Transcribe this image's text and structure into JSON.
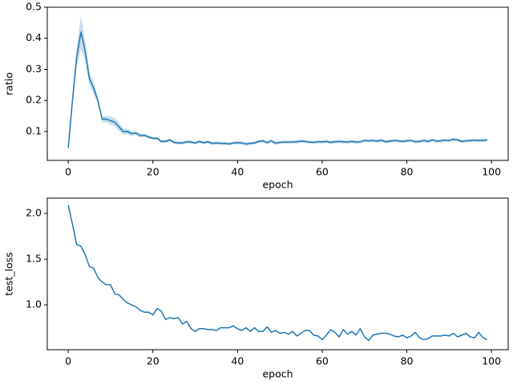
{
  "chart_data": [
    {
      "type": "line",
      "x_label": "epoch",
      "y_label": "ratio",
      "x": [
        0,
        1,
        2,
        3,
        4,
        5,
        6,
        7,
        8,
        9,
        10,
        11,
        12,
        13,
        14,
        15,
        16,
        17,
        18,
        19,
        20,
        21,
        22,
        23,
        24,
        25,
        26,
        27,
        28,
        29,
        30,
        31,
        32,
        33,
        34,
        35,
        36,
        37,
        38,
        39,
        40,
        41,
        42,
        43,
        44,
        45,
        46,
        47,
        48,
        49,
        50,
        51,
        52,
        53,
        54,
        55,
        56,
        57,
        58,
        59,
        60,
        61,
        62,
        63,
        64,
        65,
        66,
        67,
        68,
        69,
        70,
        71,
        72,
        73,
        74,
        75,
        76,
        77,
        78,
        79,
        80,
        81,
        82,
        83,
        84,
        85,
        86,
        87,
        88,
        89,
        90,
        91,
        92,
        93,
        94,
        95,
        96,
        97,
        98,
        99
      ],
      "values": [
        0.047,
        0.2,
        0.34,
        0.42,
        0.36,
        0.27,
        0.24,
        0.2,
        0.14,
        0.14,
        0.135,
        0.13,
        0.115,
        0.1,
        0.1,
        0.093,
        0.095,
        0.087,
        0.088,
        0.082,
        0.078,
        0.078,
        0.068,
        0.068,
        0.073,
        0.065,
        0.063,
        0.063,
        0.067,
        0.066,
        0.063,
        0.068,
        0.064,
        0.067,
        0.062,
        0.063,
        0.062,
        0.062,
        0.06,
        0.063,
        0.064,
        0.063,
        0.06,
        0.062,
        0.063,
        0.068,
        0.07,
        0.064,
        0.07,
        0.062,
        0.065,
        0.066,
        0.066,
        0.066,
        0.067,
        0.069,
        0.068,
        0.066,
        0.065,
        0.067,
        0.067,
        0.068,
        0.065,
        0.067,
        0.068,
        0.067,
        0.066,
        0.068,
        0.066,
        0.067,
        0.071,
        0.07,
        0.071,
        0.069,
        0.072,
        0.067,
        0.069,
        0.071,
        0.07,
        0.068,
        0.07,
        0.071,
        0.067,
        0.068,
        0.071,
        0.068,
        0.073,
        0.069,
        0.07,
        0.072,
        0.071,
        0.075,
        0.073,
        0.068,
        0.07,
        0.071,
        0.072,
        0.071,
        0.071,
        0.073
      ],
      "errors": [
        0.008,
        0.02,
        0.03,
        0.055,
        0.03,
        0.02,
        0.02,
        0.01,
        0.01,
        0.01,
        0.013,
        0.014,
        0.013,
        0.01,
        0.009,
        0.008,
        0.007,
        0.006,
        0.005,
        0.005,
        0.005,
        0.005,
        0.005,
        0.005,
        0.005,
        0.005,
        0.005,
        0.005,
        0.005,
        0.005,
        0.005,
        0.005,
        0.005,
        0.005,
        0.005,
        0.005,
        0.005,
        0.005,
        0.005,
        0.005,
        0.005,
        0.005,
        0.005,
        0.005,
        0.005,
        0.005,
        0.005,
        0.005,
        0.005,
        0.005,
        0.005,
        0.005,
        0.005,
        0.005,
        0.005,
        0.005,
        0.005,
        0.005,
        0.005,
        0.005,
        0.005,
        0.005,
        0.005,
        0.005,
        0.005,
        0.005,
        0.005,
        0.005,
        0.005,
        0.005,
        0.005,
        0.005,
        0.005,
        0.005,
        0.005,
        0.005,
        0.005,
        0.005,
        0.005,
        0.005,
        0.005,
        0.005,
        0.005,
        0.005,
        0.005,
        0.005,
        0.005,
        0.005,
        0.005,
        0.005,
        0.005,
        0.005,
        0.005,
        0.005,
        0.005,
        0.005,
        0.005,
        0.005,
        0.005,
        0.005
      ],
      "color": "#1f77b4",
      "xlim": [
        -4.95,
        103.95
      ],
      "xticks": [
        0,
        20,
        40,
        60,
        80,
        100
      ],
      "ylim": [
        0.007,
        0.5
      ],
      "yticks": [
        0.1,
        0.2,
        0.3,
        0.4,
        0.5
      ]
    },
    {
      "type": "line",
      "x_label": "epoch",
      "y_label": "test_loss",
      "x": [
        0,
        1,
        2,
        3,
        4,
        5,
        6,
        7,
        8,
        9,
        10,
        11,
        12,
        13,
        14,
        15,
        16,
        17,
        18,
        19,
        20,
        21,
        22,
        23,
        24,
        25,
        26,
        27,
        28,
        29,
        30,
        31,
        32,
        33,
        34,
        35,
        36,
        37,
        38,
        39,
        40,
        41,
        42,
        43,
        44,
        45,
        46,
        47,
        48,
        49,
        50,
        51,
        52,
        53,
        54,
        55,
        56,
        57,
        58,
        59,
        60,
        61,
        62,
        63,
        64,
        65,
        66,
        67,
        68,
        69,
        70,
        71,
        72,
        73,
        74,
        75,
        76,
        77,
        78,
        79,
        80,
        81,
        82,
        83,
        84,
        85,
        86,
        87,
        88,
        89,
        90,
        91,
        92,
        93,
        94,
        95,
        96,
        97,
        98,
        99
      ],
      "values": [
        2.09,
        1.88,
        1.66,
        1.64,
        1.55,
        1.42,
        1.4,
        1.3,
        1.25,
        1.22,
        1.22,
        1.12,
        1.11,
        1.06,
        1.02,
        1.0,
        0.98,
        0.94,
        0.92,
        0.92,
        0.89,
        0.96,
        0.93,
        0.84,
        0.86,
        0.85,
        0.86,
        0.79,
        0.82,
        0.74,
        0.71,
        0.74,
        0.74,
        0.73,
        0.73,
        0.72,
        0.75,
        0.75,
        0.75,
        0.77,
        0.74,
        0.72,
        0.75,
        0.71,
        0.75,
        0.71,
        0.71,
        0.76,
        0.7,
        0.72,
        0.69,
        0.7,
        0.68,
        0.71,
        0.66,
        0.69,
        0.72,
        0.72,
        0.67,
        0.66,
        0.62,
        0.67,
        0.73,
        0.7,
        0.65,
        0.73,
        0.68,
        0.71,
        0.67,
        0.74,
        0.65,
        0.61,
        0.67,
        0.68,
        0.69,
        0.69,
        0.68,
        0.66,
        0.65,
        0.67,
        0.64,
        0.66,
        0.7,
        0.64,
        0.62,
        0.63,
        0.66,
        0.66,
        0.66,
        0.67,
        0.66,
        0.69,
        0.65,
        0.67,
        0.69,
        0.65,
        0.64,
        0.7,
        0.64,
        0.62
      ],
      "color": "#1f77b4",
      "xlim": [
        -4.95,
        103.95
      ],
      "xticks": [
        0,
        20,
        40,
        60,
        80,
        100
      ],
      "ylim": [
        0.51,
        2.167
      ],
      "yticks": [
        {
          "value": 1,
          "label": "1.0"
        },
        1.5,
        {
          "value": 2,
          "label": "2.0"
        }
      ]
    }
  ]
}
